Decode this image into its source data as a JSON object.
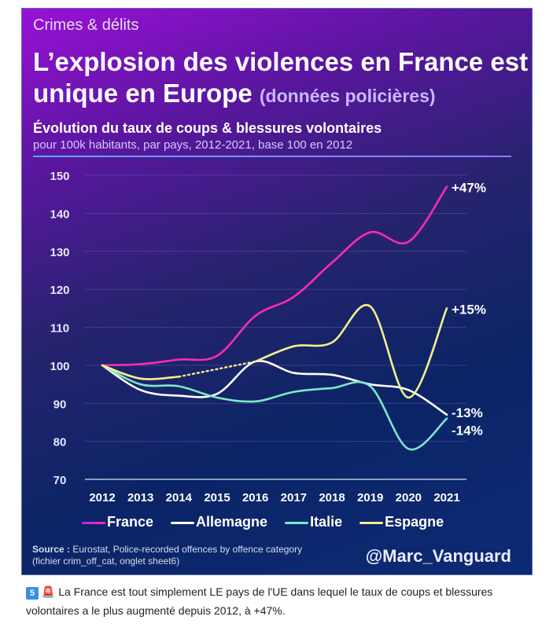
{
  "kicker": "Crimes & délits",
  "title": "L’explosion des violences en France est unique en Europe",
  "title_paren": "(données policières)",
  "caption": {
    "badge": "5",
    "emoji": "🚨",
    "text": "La France est tout simplement LE pays de l'UE dans lequel le taux de coups et blessures volontaires a le plus augmenté depuis 2012, à +47%."
  },
  "source_label": "Source :",
  "source_text": "Eurostat, Police-recorded offences by offence category",
  "source_text2": "(fichier crim_off_cat, onglet sheet6)",
  "handle": "@Marc_Vanguard",
  "chart_data": {
    "type": "line",
    "title": "Évolution du taux de coups & blessures volontaires",
    "subtitle": "pour 100k habitants, par pays, 2012-2021, base 100 en 2012",
    "x": [
      "2012",
      "2013",
      "2014",
      "2015",
      "2016",
      "2017",
      "2018",
      "2019",
      "2020",
      "2021"
    ],
    "ylim": [
      70,
      150
    ],
    "yticks": [
      70,
      80,
      90,
      100,
      110,
      120,
      130,
      140,
      150
    ],
    "grid": true,
    "legend": "bottom",
    "series": [
      {
        "name": "France",
        "color": "#ff2bb0",
        "values": [
          100,
          100.3,
          101.5,
          102.5,
          113,
          118,
          127,
          135,
          132.5,
          147
        ],
        "end_label": "+47%"
      },
      {
        "name": "Allemagne",
        "color": "#ffffff",
        "values": [
          100,
          93.5,
          92,
          92.5,
          101,
          98,
          97.5,
          95,
          93.5,
          87
        ],
        "end_label": "-13%"
      },
      {
        "name": "Italie",
        "color": "#7de8c8",
        "values": [
          100,
          95,
          94.5,
          91.5,
          90.5,
          93,
          94,
          94.5,
          78,
          86
        ],
        "end_label": "-14%"
      },
      {
        "name": "Espagne",
        "color": "#f3ef8a",
        "values": [
          100,
          96.5,
          97,
          null,
          101,
          105,
          106,
          115.5,
          91.5,
          115
        ],
        "end_label": "+15%"
      }
    ]
  }
}
